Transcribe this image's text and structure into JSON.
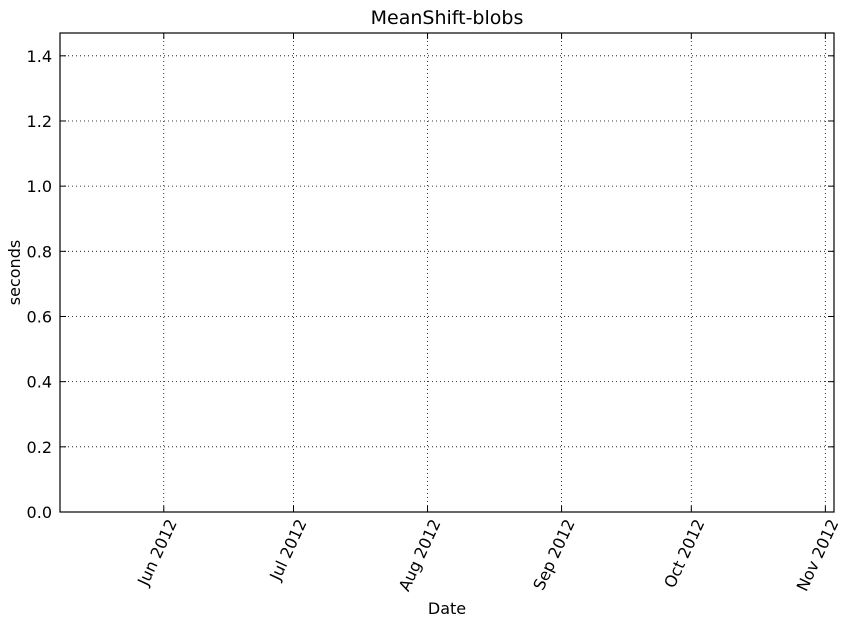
{
  "chart_data": {
    "type": "line",
    "title": "MeanShift-blobs",
    "xlabel": "Date",
    "ylabel": "seconds",
    "x_ticks": [
      "2012-06-01",
      "2012-07-01",
      "2012-08-01",
      "2012-09-01",
      "2012-10-01",
      "2012-11-01"
    ],
    "x_tick_labels": [
      "Jun 2012",
      "Jul 2012",
      "Aug 2012",
      "Sep 2012",
      "Oct 2012",
      "Nov 2012"
    ],
    "xlim": [
      "2012-05-08",
      "2012-11-03"
    ],
    "y_ticks": [
      0.0,
      0.2,
      0.4,
      0.6,
      0.8,
      1.0,
      1.2,
      1.4
    ],
    "y_tick_labels": [
      "0.0",
      "0.2",
      "0.4",
      "0.6",
      "0.8",
      "1.0",
      "1.2",
      "1.4"
    ],
    "ylim": [
      0,
      1.47
    ],
    "grid": true,
    "series": []
  }
}
